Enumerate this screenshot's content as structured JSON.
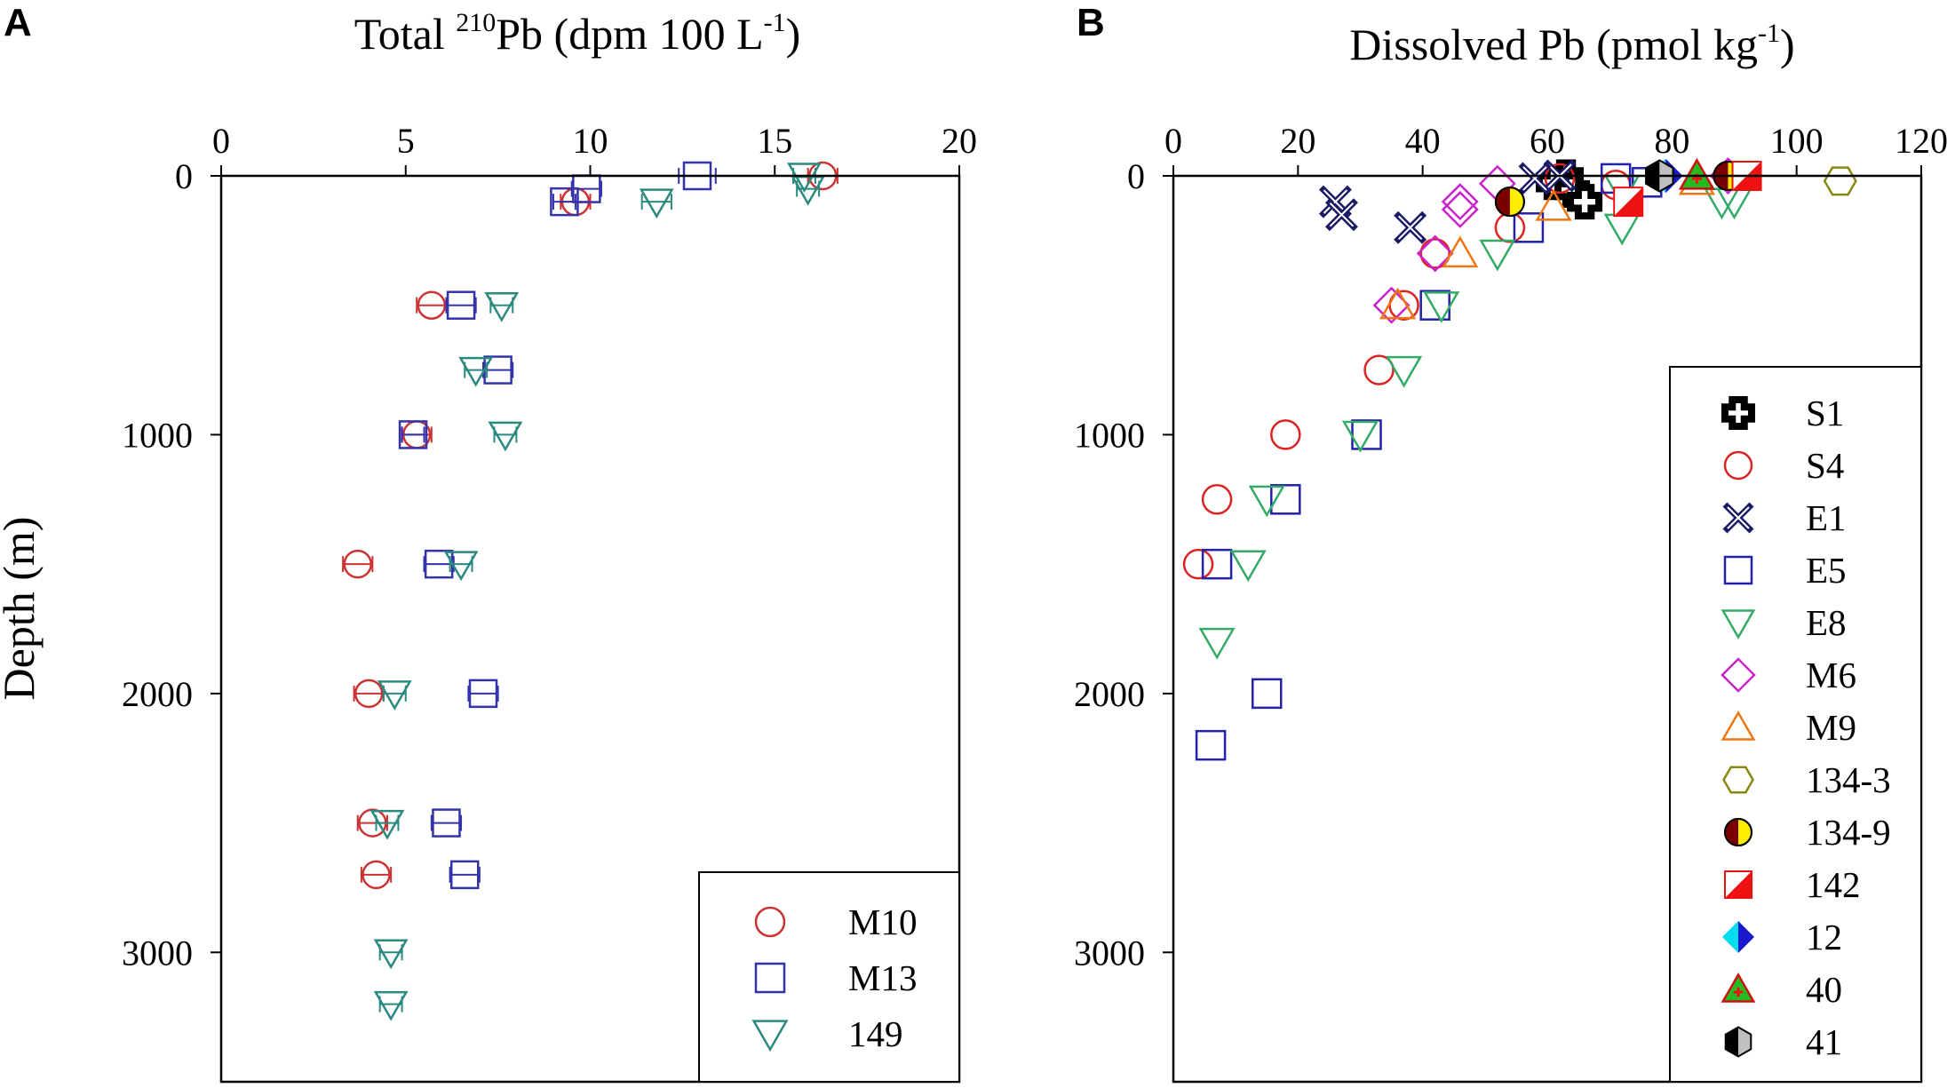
{
  "chart_data": [
    {
      "panel": "A",
      "type": "scatter",
      "title_pre": "Total ",
      "title_sup1": "210",
      "title_mid": "Pb (dpm 100 L",
      "title_sup2": "-1",
      "title_post": ")",
      "ylabel": "Depth (m)",
      "xlim": [
        0,
        20
      ],
      "ylim": [
        0,
        3500
      ],
      "x_axis": "top",
      "y_inverted": true,
      "xticks": [
        0,
        5,
        10,
        15,
        20
      ],
      "yticks": [
        0,
        1000,
        2000,
        3000
      ],
      "legend_position": "bottom-right",
      "series": [
        {
          "name": "M10",
          "marker": "circle",
          "color": "#cc3333",
          "points": [
            [
              16.3,
              0,
              0.4
            ],
            [
              9.6,
              100,
              0.4
            ],
            [
              5.7,
              500,
              0.4
            ],
            [
              5.3,
              1000,
              0.4
            ],
            [
              3.7,
              1500,
              0.4
            ],
            [
              4.0,
              2000,
              0.4
            ],
            [
              4.1,
              2500,
              0.4
            ],
            [
              4.2,
              2700,
              0.4
            ]
          ]
        },
        {
          "name": "M13",
          "marker": "square",
          "color": "#3333aa",
          "points": [
            [
              12.9,
              0,
              0.5
            ],
            [
              9.9,
              50,
              0.4
            ],
            [
              9.3,
              100,
              0.3
            ],
            [
              6.5,
              500,
              0.4
            ],
            [
              7.5,
              750,
              0.4
            ],
            [
              5.2,
              1000,
              0.3
            ],
            [
              5.9,
              1500,
              0.4
            ],
            [
              7.1,
              2000,
              0.4
            ],
            [
              6.1,
              2500,
              0.4
            ],
            [
              6.6,
              2700,
              0.4
            ]
          ]
        },
        {
          "name": "149",
          "marker": "triangle-down",
          "color": "#2a8a80",
          "points": [
            [
              15.8,
              0,
              0.3
            ],
            [
              15.9,
              50,
              0.3
            ],
            [
              11.8,
              100,
              0.4
            ],
            [
              7.6,
              500,
              0.3
            ],
            [
              6.9,
              750,
              0.3
            ],
            [
              7.7,
              1000,
              0.3
            ],
            [
              6.5,
              1500,
              0.3
            ],
            [
              4.7,
              2000,
              0.3
            ],
            [
              4.5,
              2500,
              0.3
            ],
            [
              4.6,
              3000,
              0.3
            ],
            [
              4.6,
              3200,
              0.3
            ]
          ]
        }
      ]
    },
    {
      "panel": "B",
      "type": "scatter",
      "title_pre": "Dissolved Pb (pmol kg",
      "title_sup": "-1",
      "title_post": ")",
      "xlim": [
        0,
        120
      ],
      "ylim": [
        0,
        3500
      ],
      "x_axis": "top",
      "y_inverted": true,
      "xticks": [
        0,
        20,
        40,
        60,
        80,
        100,
        120
      ],
      "yticks": [
        0,
        1000,
        2000,
        3000
      ],
      "legend_position": "right",
      "series": [
        {
          "name": "S1",
          "marker": "cross-filled",
          "color": "#000000",
          "points": [
            [
              63,
              5
            ],
            [
              61,
              25
            ],
            [
              64,
              55
            ],
            [
              66,
              100
            ]
          ]
        },
        {
          "name": "S4",
          "marker": "circle",
          "color": "#dd2222",
          "points": [
            [
              62,
              10
            ],
            [
              71,
              35
            ],
            [
              54,
              200
            ],
            [
              42,
              300
            ],
            [
              37,
              500
            ],
            [
              33,
              750
            ],
            [
              18,
              1000
            ],
            [
              7,
              1250
            ],
            [
              4,
              1500
            ]
          ]
        },
        {
          "name": "E1",
          "marker": "x",
          "color": "#1a1a66",
          "points": [
            [
              26,
              100
            ],
            [
              27,
              150
            ],
            [
              38,
              200
            ],
            [
              62,
              0
            ],
            [
              58,
              10
            ]
          ]
        },
        {
          "name": "E5",
          "marker": "square",
          "color": "#2222aa",
          "points": [
            [
              71,
              10
            ],
            [
              76,
              25
            ],
            [
              57,
              200
            ],
            [
              42,
              500
            ],
            [
              31,
              1000
            ],
            [
              18,
              1250
            ],
            [
              7,
              1500
            ],
            [
              15,
              2000
            ],
            [
              6,
              2200
            ]
          ]
        },
        {
          "name": "E8",
          "marker": "triangle-down",
          "color": "#33aa66",
          "points": [
            [
              72,
              50
            ],
            [
              88,
              100
            ],
            [
              90,
              100
            ],
            [
              72,
              200
            ],
            [
              52,
              300
            ],
            [
              43,
              500
            ],
            [
              37,
              750
            ],
            [
              30,
              1000
            ],
            [
              15,
              1250
            ],
            [
              12,
              1500
            ],
            [
              7,
              1800
            ]
          ]
        },
        {
          "name": "M6",
          "marker": "diamond",
          "color": "#cc22cc",
          "points": [
            [
              52,
              30
            ],
            [
              46,
              100
            ],
            [
              46,
              130
            ],
            [
              42,
              300
            ],
            [
              35,
              500
            ],
            [
              89,
              0
            ]
          ]
        },
        {
          "name": "M9",
          "marker": "triangle-up",
          "color": "#ee7711",
          "points": [
            [
              61,
              120
            ],
            [
              46,
              300
            ],
            [
              36,
              500
            ],
            [
              84,
              20
            ]
          ]
        },
        {
          "name": "134-3",
          "marker": "hexagon",
          "color": "#888811",
          "points": [
            [
              107,
              20
            ]
          ]
        },
        {
          "name": "134-9",
          "marker": "half-circle",
          "color": "#7a0000",
          "points": [
            [
              54,
              100
            ],
            [
              89,
              0
            ]
          ]
        },
        {
          "name": "142",
          "marker": "half-square",
          "color": "#ee1111",
          "points": [
            [
              73,
              100
            ],
            [
              92,
              0
            ]
          ]
        },
        {
          "name": "12",
          "marker": "half-diamond",
          "color": "#00ddee",
          "points": [
            [
              79,
              0
            ]
          ]
        },
        {
          "name": "40",
          "marker": "triangle-plus",
          "color": "#22bb22",
          "points": [
            [
              84,
              0
            ]
          ]
        },
        {
          "name": "41",
          "marker": "half-hexagon",
          "color": "#000000",
          "points": [
            [
              78,
              0
            ]
          ]
        }
      ]
    }
  ]
}
